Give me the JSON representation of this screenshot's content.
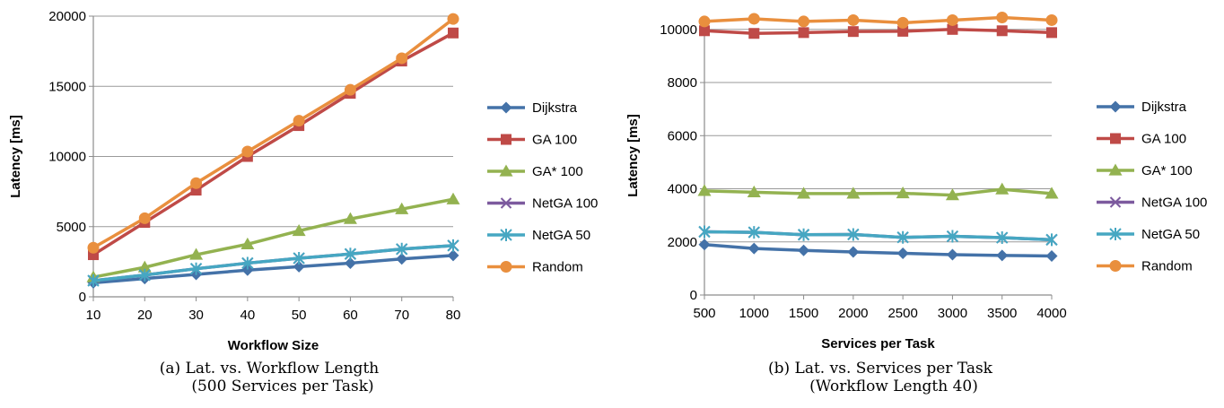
{
  "colors": {
    "Dijkstra": "#4472a8",
    "GA 100": "#bf4a47",
    "GA* 100": "#93b250",
    "NetGA 100": "#7c5a9e",
    "NetGA 50": "#46a7c2",
    "Random": "#e98f3e",
    "grid": "#9a9a9a",
    "axis": "#8c8c8c"
  },
  "markers": {
    "Dijkstra": "diamond",
    "GA 100": "square",
    "GA* 100": "triangle",
    "NetGA 100": "x",
    "NetGA 50": "star",
    "Random": "circle"
  },
  "captions": {
    "a_line1": "(a) Lat. vs. Workflow Length",
    "a_line2": "(500 Services per Task)",
    "b_line1": "(b) Lat. vs. Services per Task",
    "b_line2": "(Workflow Length 40)"
  },
  "chart_data": [
    {
      "type": "line",
      "x": [
        10,
        20,
        30,
        40,
        50,
        60,
        70,
        80
      ],
      "xlabel": "Workflow Size",
      "ylabel": "Latency [ms]",
      "ylim": [
        0,
        20000
      ],
      "yticks": [
        0,
        5000,
        10000,
        15000,
        20000
      ],
      "grid": true,
      "legend": "right",
      "series": [
        {
          "name": "Dijkstra",
          "values": [
            1000,
            1300,
            1600,
            1900,
            2150,
            2400,
            2700,
            2950
          ]
        },
        {
          "name": "GA 100",
          "values": [
            3000,
            5300,
            7600,
            10000,
            12200,
            14500,
            16800,
            18800
          ]
        },
        {
          "name": "GA* 100",
          "values": [
            1400,
            2100,
            3000,
            3750,
            4700,
            5550,
            6250,
            6950
          ]
        },
        {
          "name": "NetGA 100",
          "values": [
            1150,
            1550,
            2000,
            2400,
            2750,
            3050,
            3400,
            3650
          ]
        },
        {
          "name": "NetGA 50",
          "values": [
            1150,
            1550,
            2000,
            2400,
            2750,
            3050,
            3400,
            3650
          ]
        },
        {
          "name": "Random",
          "values": [
            3500,
            5600,
            8100,
            10350,
            12550,
            14750,
            17000,
            19800
          ]
        }
      ]
    },
    {
      "type": "line",
      "x": [
        500,
        1000,
        1500,
        2000,
        2500,
        3000,
        3500,
        4000
      ],
      "xlabel": "Services per Task",
      "ylabel": "Latency [ms]",
      "ylim": [
        0,
        10500
      ],
      "yticks": [
        0,
        2000,
        4000,
        6000,
        8000,
        10000
      ],
      "grid": true,
      "legend": "right",
      "series": [
        {
          "name": "Dijkstra",
          "values": [
            1900,
            1750,
            1680,
            1620,
            1570,
            1520,
            1490,
            1470
          ]
        },
        {
          "name": "GA 100",
          "values": [
            9950,
            9850,
            9880,
            9920,
            9930,
            10000,
            9950,
            9880
          ]
        },
        {
          "name": "GA* 100",
          "values": [
            3920,
            3870,
            3820,
            3820,
            3830,
            3760,
            3980,
            3820
          ]
        },
        {
          "name": "NetGA 100",
          "values": [
            2380,
            2360,
            2270,
            2280,
            2170,
            2210,
            2160,
            2080
          ]
        },
        {
          "name": "NetGA 50",
          "values": [
            2380,
            2360,
            2270,
            2280,
            2170,
            2210,
            2160,
            2080
          ]
        },
        {
          "name": "Random",
          "values": [
            10300,
            10400,
            10300,
            10350,
            10250,
            10350,
            10450,
            10350
          ]
        }
      ]
    }
  ]
}
